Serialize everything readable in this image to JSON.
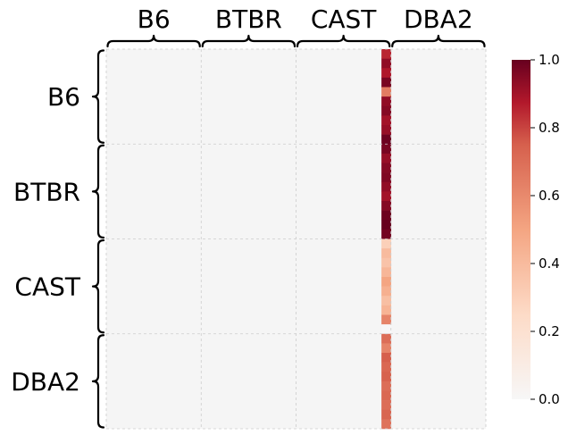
{
  "chart_data": {
    "type": "heatmap",
    "title": "",
    "xlabel": "",
    "ylabel": "",
    "column_groups": [
      "B6",
      "BTBR",
      "CAST",
      "DBA2"
    ],
    "row_groups": [
      "B6",
      "BTBR",
      "CAST",
      "DBA2"
    ],
    "rows_per_group": 10,
    "cols_per_group": 10,
    "nonzero_column": {
      "group": "CAST",
      "index": 9
    },
    "column_values": [
      0.85,
      0.93,
      0.88,
      0.97,
      0.65,
      0.93,
      0.95,
      0.9,
      0.92,
      0.99,
      0.97,
      0.92,
      0.95,
      0.96,
      0.93,
      0.9,
      0.95,
      0.99,
      1.0,
      0.98,
      0.3,
      0.4,
      0.36,
      0.42,
      0.5,
      0.45,
      0.38,
      0.43,
      0.62,
      0.0,
      0.7,
      0.62,
      0.75,
      0.72,
      0.74,
      0.7,
      0.72,
      0.7,
      0.73,
      0.68
    ],
    "background_value": 0.0,
    "colormap": "RdBu_r (0 to 1)",
    "colorbar": {
      "min": 0.0,
      "max": 1.0,
      "ticks": [
        "0.0",
        "0.2",
        "0.4",
        "0.6",
        "0.8",
        "1.0"
      ]
    },
    "grid": true,
    "colors": {
      "background_cell": "#f5f5f5",
      "grid": "#cccccc"
    }
  }
}
